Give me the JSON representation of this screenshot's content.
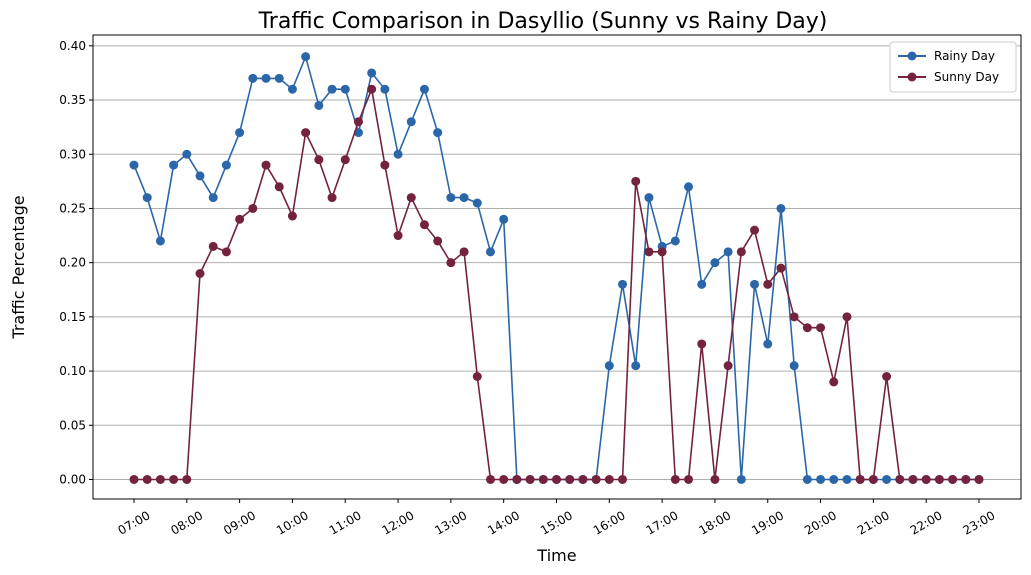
{
  "chart_data": {
    "type": "line",
    "title": "Traffic Comparison in Dasyllio (Sunny vs Rainy Day)",
    "xlabel": "Time",
    "ylabel": "Traffic Percentage",
    "ylim": [
      -0.018,
      0.41
    ],
    "yticks": [
      "0.00",
      "0.05",
      "0.10",
      "0.15",
      "0.20",
      "0.25",
      "0.30",
      "0.35",
      "0.40"
    ],
    "xticks": [
      "07:00",
      "08:00",
      "09:00",
      "10:00",
      "11:00",
      "12:00",
      "13:00",
      "14:00",
      "15:00",
      "16:00",
      "17:00",
      "18:00",
      "19:00",
      "20:00",
      "21:00",
      "22:00",
      "23:00"
    ],
    "grid": "horizontal",
    "legend_position": "upper right",
    "x": [
      "07:00",
      "07:15",
      "07:30",
      "07:45",
      "08:00",
      "08:15",
      "08:30",
      "08:45",
      "09:00",
      "09:15",
      "09:30",
      "09:45",
      "10:00",
      "10:15",
      "10:30",
      "10:45",
      "11:00",
      "11:15",
      "11:30",
      "11:45",
      "12:00",
      "12:15",
      "12:30",
      "12:45",
      "13:00",
      "13:15",
      "13:30",
      "13:45",
      "14:00",
      "14:15",
      "14:30",
      "14:45",
      "15:00",
      "15:15",
      "15:30",
      "15:45",
      "16:00",
      "16:15",
      "16:30",
      "16:45",
      "17:00",
      "17:15",
      "17:30",
      "17:45",
      "18:00",
      "18:15",
      "18:30",
      "18:45",
      "19:00",
      "19:15",
      "19:30",
      "19:45",
      "20:00",
      "20:15",
      "20:30",
      "20:45",
      "21:00",
      "21:15",
      "21:30",
      "21:45",
      "22:00",
      "22:15",
      "22:30",
      "22:45",
      "23:00"
    ],
    "series": [
      {
        "name": "Rainy Day",
        "color": "#2b67a8",
        "values": [
          0.29,
          0.26,
          0.22,
          0.29,
          0.3,
          0.28,
          0.26,
          0.29,
          0.32,
          0.37,
          0.37,
          0.37,
          0.36,
          0.39,
          0.345,
          0.36,
          0.36,
          0.32,
          0.375,
          0.36,
          0.3,
          0.33,
          0.36,
          0.32,
          0.26,
          0.26,
          0.255,
          0.21,
          0.24,
          0.0,
          0.0,
          0.0,
          0.0,
          0.0,
          0.0,
          0.0,
          0.105,
          0.18,
          0.105,
          0.26,
          0.215,
          0.22,
          0.27,
          0.18,
          0.2,
          0.21,
          0.0,
          0.18,
          0.125,
          0.25,
          0.105,
          0.0,
          0.0,
          0.0,
          0.0,
          0.0,
          0.0,
          0.0,
          0.0,
          0.0,
          0.0,
          0.0,
          0.0,
          0.0,
          0.0
        ]
      },
      {
        "name": "Sunny Day",
        "color": "#74233f",
        "values": [
          0.0,
          0.0,
          0.0,
          0.0,
          0.0,
          0.19,
          0.215,
          0.21,
          0.24,
          0.25,
          0.29,
          0.27,
          0.243,
          0.32,
          0.295,
          0.26,
          0.295,
          0.33,
          0.36,
          0.29,
          0.225,
          0.26,
          0.235,
          0.22,
          0.2,
          0.21,
          0.095,
          0.0,
          0.0,
          0.0,
          0.0,
          0.0,
          0.0,
          0.0,
          0.0,
          0.0,
          0.0,
          0.0,
          0.275,
          0.21,
          0.21,
          0.0,
          0.0,
          0.125,
          0.0,
          0.105,
          0.21,
          0.23,
          0.18,
          0.195,
          0.15,
          0.14,
          0.14,
          0.09,
          0.15,
          0.0,
          0.0,
          0.095,
          0.0,
          0.0,
          0.0,
          0.0,
          0.0,
          0.0,
          0.0
        ]
      }
    ]
  }
}
